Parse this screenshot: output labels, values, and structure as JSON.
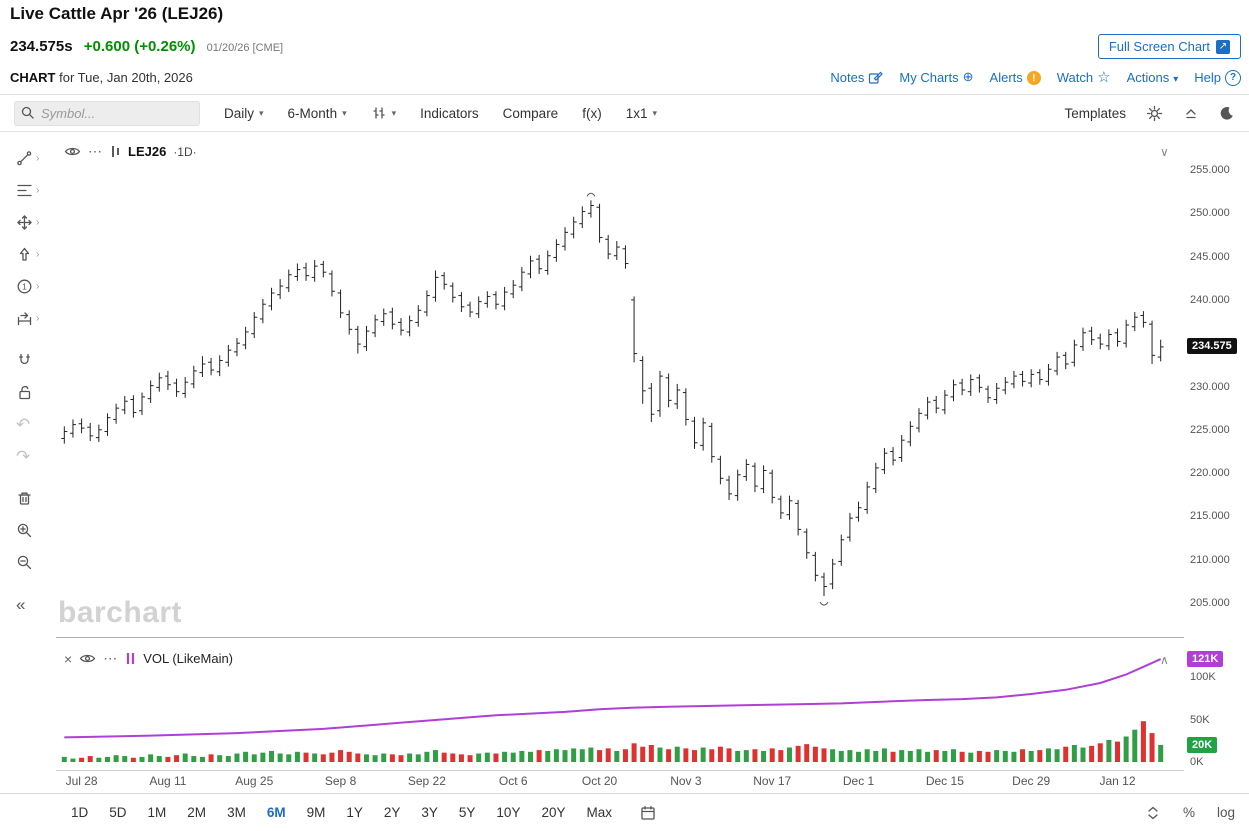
{
  "header": {
    "title": "Live Cattle Apr '26 (LEJ26)",
    "last_price": "234.575s",
    "change": "+0.600 (+0.26%)",
    "session_info": "01/20/26 [CME]",
    "fullscreen_label": "Full Screen Chart",
    "chart_prefix": "CHART",
    "chart_date": "for Tue, Jan 20th, 2026",
    "links": [
      {
        "label": "Notes",
        "icon": "notes-icon"
      },
      {
        "label": "My Charts",
        "icon": "circle-plus-icon"
      },
      {
        "label": "Alerts",
        "icon": "alert-icon"
      },
      {
        "label": "Watch",
        "icon": "star-icon"
      },
      {
        "label": "Actions",
        "icon": "caret-down-icon"
      },
      {
        "label": "Help",
        "icon": "help-icon"
      }
    ]
  },
  "toolbar": {
    "symbol_placeholder": "Symbol...",
    "frequency_label": "Daily",
    "period_label": "6-Month",
    "indicators_label": "Indicators",
    "compare_label": "Compare",
    "fx_label": "f(x)",
    "layout_label": "1x1",
    "templates_label": "Templates"
  },
  "price_panel": {
    "symbol": "LEJ26",
    "frequency": "·1D·",
    "watermark": "barchart",
    "price_badge": "234.575",
    "y_ticks": [
      "255.000",
      "250.000",
      "245.000",
      "240.000",
      "235.000",
      "230.000",
      "225.000",
      "220.000",
      "215.000",
      "210.000",
      "205.000"
    ]
  },
  "volume_panel": {
    "legend": "VOL (LikeMain)",
    "oi_badge": "121K",
    "vol_badge": "20K",
    "y_ticks": [
      "100K",
      "50K",
      "0K"
    ]
  },
  "x_axis": {
    "labels": [
      "Jul 28",
      "Aug 11",
      "Aug 25",
      "Sep 8",
      "Sep 22",
      "Oct 6",
      "Oct 20",
      "Nov 3",
      "Nov 17",
      "Dec 1",
      "Dec 15",
      "Dec 29",
      "Jan 12"
    ],
    "bar_indices": [
      2,
      12,
      22,
      32,
      42,
      52,
      62,
      72,
      82,
      92,
      102,
      112,
      122
    ]
  },
  "bottom_toolbar": {
    "ranges": [
      "1D",
      "5D",
      "1M",
      "2M",
      "3M",
      "6M",
      "9M",
      "1Y",
      "2Y",
      "3Y",
      "5Y",
      "10Y",
      "20Y",
      "Max"
    ],
    "active_range": "6M",
    "percent_label": "%",
    "log_label": "log"
  },
  "colors": {
    "accent_blue": "#1b6ec2",
    "gain_green": "#008f00",
    "bar_black": "#222222",
    "vol_green": "#2f9e44",
    "vol_red": "#e03131",
    "oi_purple": "#b03fd6",
    "badge_black": "#111111",
    "badge_green": "#21a243",
    "alert_orange": "#f5a623"
  },
  "chart_data": {
    "type": "ohlc",
    "title": "Live Cattle Apr '26 (LEJ26) Daily",
    "ylabel": "Price",
    "y_range": [
      205,
      255
    ],
    "y_tick_step": 5,
    "last_price": 234.575,
    "contract_high": 251.5,
    "contract_low": 205.8,
    "volume_axis_ticks_k": [
      0,
      50,
      100
    ],
    "latest_volume_k": 20,
    "latest_open_interest_k": 121,
    "bars_ohlc": [
      [
        224.0,
        225.4,
        223.4,
        224.8
      ],
      [
        224.6,
        226.2,
        224.1,
        225.6
      ],
      [
        225.7,
        226.3,
        224.6,
        225.2
      ],
      [
        225.3,
        225.8,
        223.7,
        224.3
      ],
      [
        224.1,
        225.6,
        223.6,
        225.0
      ],
      [
        224.8,
        226.9,
        224.3,
        226.4
      ],
      [
        226.2,
        228.0,
        225.7,
        227.5
      ],
      [
        227.3,
        228.9,
        226.8,
        228.3
      ],
      [
        228.5,
        229.0,
        226.4,
        227.0
      ],
      [
        227.2,
        229.3,
        226.7,
        228.8
      ],
      [
        228.6,
        230.7,
        228.1,
        230.1
      ],
      [
        229.9,
        231.6,
        229.4,
        231.0
      ],
      [
        231.2,
        231.8,
        229.6,
        230.2
      ],
      [
        230.4,
        230.9,
        228.8,
        229.4
      ],
      [
        229.2,
        231.1,
        228.7,
        230.5
      ],
      [
        230.3,
        232.4,
        229.8,
        231.8
      ],
      [
        231.6,
        233.5,
        231.1,
        232.6
      ],
      [
        232.8,
        233.3,
        231.3,
        231.9
      ],
      [
        231.7,
        233.6,
        231.2,
        233.0
      ],
      [
        232.8,
        234.8,
        232.3,
        234.2
      ],
      [
        234.0,
        235.6,
        233.5,
        235.0
      ],
      [
        234.8,
        236.9,
        234.3,
        236.3
      ],
      [
        236.1,
        238.6,
        235.6,
        238.0
      ],
      [
        237.8,
        240.1,
        237.3,
        239.5
      ],
      [
        239.3,
        241.4,
        238.8,
        240.8
      ],
      [
        240.6,
        242.4,
        240.1,
        241.6
      ],
      [
        241.4,
        243.5,
        240.9,
        242.9
      ],
      [
        242.7,
        244.2,
        242.2,
        243.5
      ],
      [
        243.7,
        244.3,
        242.2,
        242.8
      ],
      [
        242.6,
        244.6,
        242.1,
        243.9
      ],
      [
        244.1,
        244.5,
        242.6,
        243.2
      ],
      [
        243.0,
        243.4,
        240.4,
        241.0
      ],
      [
        240.8,
        241.2,
        237.9,
        238.5
      ],
      [
        238.3,
        238.8,
        236.0,
        236.6
      ],
      [
        236.6,
        237.0,
        233.8,
        234.9
      ],
      [
        234.6,
        237.0,
        234.1,
        236.4
      ],
      [
        236.2,
        238.3,
        235.7,
        237.7
      ],
      [
        237.5,
        239.0,
        237.0,
        238.4
      ],
      [
        238.6,
        239.1,
        236.6,
        237.2
      ],
      [
        237.4,
        237.9,
        235.9,
        236.5
      ],
      [
        236.3,
        238.2,
        235.8,
        237.6
      ],
      [
        237.4,
        239.4,
        236.9,
        238.8
      ],
      [
        238.6,
        241.1,
        238.1,
        240.5
      ],
      [
        240.3,
        243.4,
        239.8,
        242.6
      ],
      [
        242.8,
        243.2,
        241.2,
        241.8
      ],
      [
        241.6,
        242.0,
        239.7,
        240.3
      ],
      [
        240.5,
        240.9,
        238.6,
        239.2
      ],
      [
        239.4,
        239.8,
        238.0,
        238.6
      ],
      [
        238.4,
        240.4,
        237.9,
        239.8
      ],
      [
        239.6,
        241.0,
        239.1,
        240.4
      ],
      [
        240.6,
        241.0,
        238.9,
        239.5
      ],
      [
        239.3,
        241.5,
        238.8,
        240.9
      ],
      [
        240.7,
        242.3,
        240.2,
        241.7
      ],
      [
        241.5,
        243.8,
        241.0,
        243.2
      ],
      [
        243.0,
        245.1,
        242.5,
        244.5
      ],
      [
        244.7,
        245.2,
        243.0,
        243.6
      ],
      [
        243.4,
        245.7,
        242.9,
        245.1
      ],
      [
        244.9,
        247.0,
        244.4,
        246.4
      ],
      [
        246.2,
        248.4,
        245.7,
        247.8
      ],
      [
        247.6,
        249.6,
        247.1,
        249.0
      ],
      [
        248.8,
        250.8,
        248.3,
        250.2
      ],
      [
        250.0,
        251.5,
        249.5,
        250.9
      ],
      [
        250.7,
        251.1,
        246.6,
        247.2
      ],
      [
        247.0,
        247.5,
        244.7,
        245.3
      ],
      [
        245.1,
        246.8,
        244.6,
        246.1
      ],
      [
        245.9,
        246.3,
        243.6,
        244.2
      ],
      [
        240.0,
        240.4,
        232.8,
        233.8
      ],
      [
        233.0,
        233.5,
        228.0,
        229.5
      ],
      [
        229.8,
        230.4,
        225.9,
        226.8
      ],
      [
        227.2,
        231.8,
        226.5,
        231.2
      ],
      [
        231.0,
        231.5,
        227.6,
        228.4
      ],
      [
        228.0,
        230.3,
        227.4,
        229.6
      ],
      [
        229.3,
        229.8,
        225.5,
        226.2
      ],
      [
        226.0,
        226.5,
        222.8,
        223.5
      ],
      [
        223.2,
        226.4,
        222.6,
        225.8
      ],
      [
        225.4,
        225.8,
        221.2,
        221.9
      ],
      [
        221.6,
        222.0,
        218.7,
        219.4
      ],
      [
        219.2,
        219.7,
        216.9,
        217.6
      ],
      [
        217.4,
        220.4,
        216.8,
        219.8
      ],
      [
        219.6,
        221.6,
        219.1,
        221.0
      ],
      [
        220.8,
        221.2,
        217.8,
        218.5
      ],
      [
        218.2,
        220.9,
        217.7,
        220.3
      ],
      [
        220.0,
        220.4,
        216.5,
        217.2
      ],
      [
        217.0,
        217.4,
        214.7,
        215.4
      ],
      [
        215.2,
        217.4,
        214.6,
        216.8
      ],
      [
        216.5,
        216.9,
        212.8,
        213.5
      ],
      [
        213.2,
        213.6,
        210.1,
        210.8
      ],
      [
        210.5,
        210.9,
        207.5,
        208.2
      ],
      [
        208.0,
        208.5,
        205.8,
        206.9
      ],
      [
        207.2,
        210.1,
        206.6,
        209.5
      ],
      [
        209.8,
        212.9,
        209.3,
        212.3
      ],
      [
        212.6,
        215.4,
        212.1,
        214.8
      ],
      [
        214.9,
        216.7,
        214.4,
        216.0
      ],
      [
        215.8,
        219.0,
        215.3,
        218.4
      ],
      [
        218.2,
        221.2,
        217.7,
        220.6
      ],
      [
        220.4,
        222.9,
        219.9,
        222.3
      ],
      [
        222.5,
        223.0,
        220.9,
        221.5
      ],
      [
        221.8,
        224.4,
        221.3,
        223.8
      ],
      [
        223.6,
        226.0,
        223.1,
        225.4
      ],
      [
        225.2,
        227.5,
        224.7,
        226.9
      ],
      [
        226.7,
        228.8,
        226.2,
        228.2
      ],
      [
        228.4,
        228.9,
        226.9,
        227.5
      ],
      [
        227.3,
        229.6,
        226.8,
        229.0
      ],
      [
        228.8,
        230.8,
        228.3,
        230.2
      ],
      [
        230.4,
        230.9,
        229.0,
        229.6
      ],
      [
        229.4,
        231.4,
        228.9,
        230.8
      ],
      [
        231.0,
        231.4,
        229.3,
        229.9
      ],
      [
        229.7,
        230.1,
        228.1,
        228.7
      ],
      [
        228.5,
        230.4,
        228.0,
        229.8
      ],
      [
        229.6,
        231.1,
        229.1,
        230.5
      ],
      [
        230.3,
        231.8,
        229.8,
        231.2
      ],
      [
        231.4,
        231.8,
        230.0,
        230.6
      ],
      [
        230.4,
        232.0,
        229.9,
        231.4
      ],
      [
        231.6,
        232.0,
        230.2,
        230.8
      ],
      [
        230.6,
        232.6,
        230.1,
        232.0
      ],
      [
        231.8,
        234.0,
        231.3,
        233.4
      ],
      [
        233.6,
        234.0,
        232.0,
        232.6
      ],
      [
        232.8,
        235.4,
        232.3,
        234.8
      ],
      [
        234.6,
        236.8,
        234.1,
        236.2
      ],
      [
        236.4,
        236.9,
        234.8,
        235.4
      ],
      [
        235.6,
        236.1,
        234.3,
        234.9
      ],
      [
        234.7,
        236.6,
        234.2,
        236.0
      ],
      [
        236.2,
        236.7,
        234.6,
        235.2
      ],
      [
        235.0,
        237.7,
        234.5,
        237.1
      ],
      [
        236.9,
        238.6,
        236.4,
        238.0
      ],
      [
        238.2,
        238.7,
        236.8,
        237.4
      ],
      [
        237.2,
        237.6,
        232.6,
        233.6
      ],
      [
        233.4,
        235.4,
        232.9,
        234.575
      ]
    ],
    "volumes_k": [
      6,
      4,
      5,
      7,
      5,
      6,
      8,
      7,
      5,
      6,
      9,
      7,
      6,
      8,
      10,
      7,
      6,
      9,
      8,
      7,
      10,
      12,
      9,
      11,
      13,
      10,
      9,
      12,
      11,
      10,
      9,
      11,
      14,
      12,
      10,
      9,
      8,
      10,
      9,
      8,
      10,
      9,
      12,
      14,
      11,
      10,
      9,
      8,
      10,
      11,
      10,
      12,
      11,
      13,
      12,
      14,
      13,
      15,
      14,
      16,
      15,
      17,
      14,
      16,
      13,
      15,
      22,
      18,
      20,
      17,
      15,
      18,
      16,
      14,
      17,
      15,
      18,
      16,
      13,
      14,
      15,
      13,
      16,
      14,
      17,
      19,
      21,
      18,
      16,
      15,
      13,
      14,
      12,
      15,
      13,
      16,
      12,
      14,
      13,
      15,
      12,
      14,
      13,
      15,
      12,
      11,
      13,
      12,
      14,
      13,
      12,
      15,
      13,
      14,
      16,
      15,
      18,
      20,
      17,
      19,
      22,
      26,
      24,
      30,
      38,
      48,
      34,
      20
    ],
    "open_interest_k_points": [
      [
        0,
        29
      ],
      [
        10,
        31
      ],
      [
        20,
        34
      ],
      [
        30,
        39
      ],
      [
        40,
        47
      ],
      [
        50,
        55
      ],
      [
        58,
        59
      ],
      [
        62,
        62
      ],
      [
        66,
        64
      ],
      [
        70,
        65
      ],
      [
        75,
        66
      ],
      [
        80,
        67
      ],
      [
        85,
        68
      ],
      [
        90,
        69
      ],
      [
        95,
        71
      ],
      [
        100,
        73
      ],
      [
        104,
        74
      ],
      [
        108,
        76
      ],
      [
        112,
        80
      ],
      [
        116,
        85
      ],
      [
        120,
        93
      ],
      [
        123,
        103
      ],
      [
        125,
        112
      ],
      [
        127,
        121
      ]
    ]
  }
}
